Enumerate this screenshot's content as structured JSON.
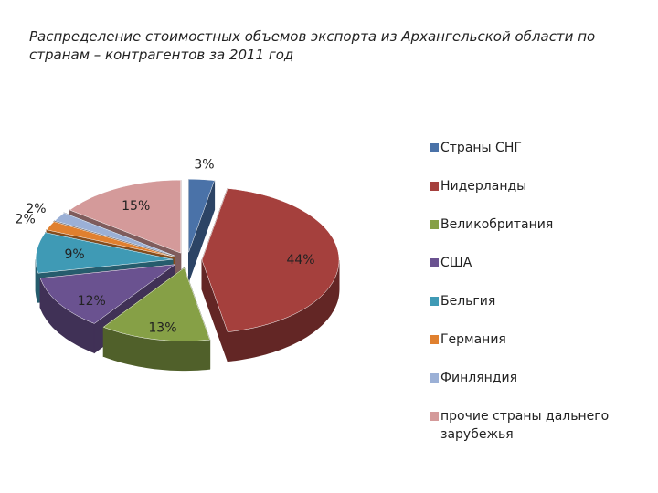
{
  "chart_data": {
    "type": "pie3d",
    "title": "Распределение стоимостных объемов экспорта из Архангельской области по странам – контрагентов за 2011 год",
    "categories": [
      "Страны СНГ",
      "Нидерланды",
      "Великобритания",
      "США",
      "Бельгия",
      "Германия",
      "Финляндия",
      "прочие страны дальнего зарубежья"
    ],
    "values": [
      3,
      44,
      13,
      12,
      9,
      2,
      2,
      15
    ],
    "value_labels": [
      "3%",
      "44%",
      "13%",
      "12%",
      "9%",
      "2%",
      "2%",
      "15%"
    ],
    "colors": [
      "#4a72a8",
      "#a5403d",
      "#86a046",
      "#6a5290",
      "#3f9ab5",
      "#e0802f",
      "#9bb0d6",
      "#d49a9a"
    ],
    "legend": "right"
  }
}
